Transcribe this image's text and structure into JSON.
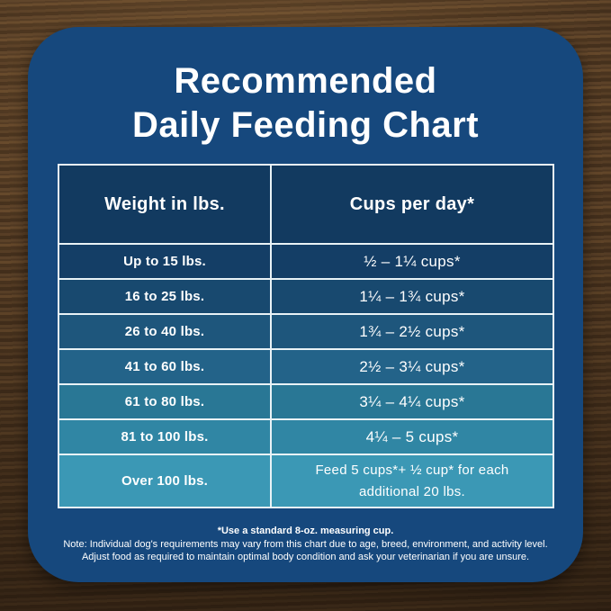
{
  "title": {
    "line1": "Recommended",
    "line2": "Daily Feeding Chart"
  },
  "table": {
    "headers": [
      "Weight in lbs.",
      "Cups per day*"
    ],
    "rows": [
      {
        "weight": "Up to 15 lbs.",
        "cups": "½ – 1¼ cups*",
        "bg": "#143e66"
      },
      {
        "weight": "16 to 25 lbs.",
        "cups": "1¼ – 1¾ cups*",
        "bg": "#18496f"
      },
      {
        "weight": "26 to 40 lbs.",
        "cups": "1¾ – 2½ cups*",
        "bg": "#1e567c"
      },
      {
        "weight": "41 to 60 lbs.",
        "cups": "2½ – 3¼ cups*",
        "bg": "#236389"
      },
      {
        "weight": "61 to 80 lbs.",
        "cups": "3¼ – 4¼ cups*",
        "bg": "#297795"
      },
      {
        "weight": "81 to 100 lbs.",
        "cups": "4¼ – 5 cups*",
        "bg": "#3086a4"
      },
      {
        "weight": "Over 100 lbs.",
        "cups": "Feed 5 cups*+ ½ cup* for each additional 20 lbs.",
        "bg": "#3b98b5",
        "tall": true
      }
    ]
  },
  "notes": {
    "line1": "*Use a standard 8-oz. measuring cup.",
    "line2": "Note: Individual dog's requirements may vary from this chart due to age, breed, environment, and activity level.",
    "line3": "Adjust food as required to maintain optimal body condition and ask your veterinarian if you are unsure."
  },
  "colors": {
    "card_background": "#16487d",
    "header_cell_background": "#123a60",
    "table_border": "#e9f2f6",
    "text": "#ffffff",
    "wood_dark": "#392717",
    "wood_light": "#6a4c2d"
  }
}
